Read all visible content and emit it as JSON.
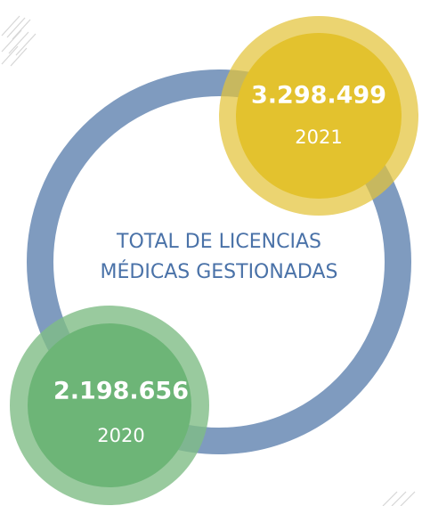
{
  "title_lines": [
    "TOTAL DE LICENCIAS",
    "MÉDICAS GESTIONADAS"
  ],
  "items": [
    {
      "value": "3.298.499",
      "year": "2021"
    },
    {
      "value": "2.198.656",
      "year": "2020"
    }
  ]
}
